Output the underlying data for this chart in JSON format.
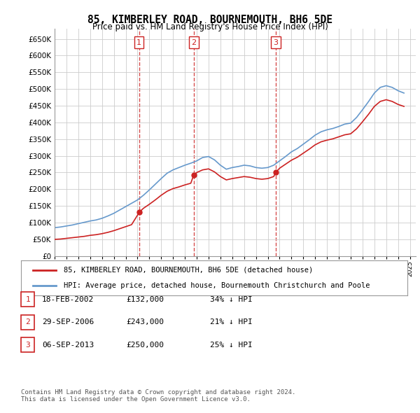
{
  "title": "85, KIMBERLEY ROAD, BOURNEMOUTH, BH6 5DE",
  "subtitle": "Price paid vs. HM Land Registry's House Price Index (HPI)",
  "ylabel": "",
  "ylim": [
    0,
    680000
  ],
  "yticks": [
    0,
    50000,
    100000,
    150000,
    200000,
    250000,
    300000,
    350000,
    400000,
    450000,
    500000,
    550000,
    600000,
    650000
  ],
  "ytick_labels": [
    "£0",
    "£50K",
    "£100K",
    "£150K",
    "£200K",
    "£250K",
    "£300K",
    "£350K",
    "£400K",
    "£450K",
    "£500K",
    "£550K",
    "£600K",
    "£650K"
  ],
  "sale_dates": [
    "2002-02-18",
    "2006-09-29",
    "2013-09-06"
  ],
  "sale_prices": [
    132000,
    243000,
    250000
  ],
  "sale_labels": [
    "1",
    "2",
    "3"
  ],
  "hpi_color": "#6699cc",
  "price_color": "#cc2222",
  "grid_color": "#cccccc",
  "background_color": "#ffffff",
  "legend_entries": [
    "85, KIMBERLEY ROAD, BOURNEMOUTH, BH6 5DE (detached house)",
    "HPI: Average price, detached house, Bournemouth Christchurch and Poole"
  ],
  "table_rows": [
    {
      "num": "1",
      "date": "18-FEB-2002",
      "price": "£132,000",
      "hpi": "34% ↓ HPI"
    },
    {
      "num": "2",
      "date": "29-SEP-2006",
      "price": "£243,000",
      "hpi": "21% ↓ HPI"
    },
    {
      "num": "3",
      "date": "06-SEP-2013",
      "price": "£250,000",
      "hpi": "25% ↓ HPI"
    }
  ],
  "footer": "Contains HM Land Registry data © Crown copyright and database right 2024.\nThis data is licensed under the Open Government Licence v3.0.",
  "xlim_start": 1995.0,
  "xlim_end": 2025.5
}
